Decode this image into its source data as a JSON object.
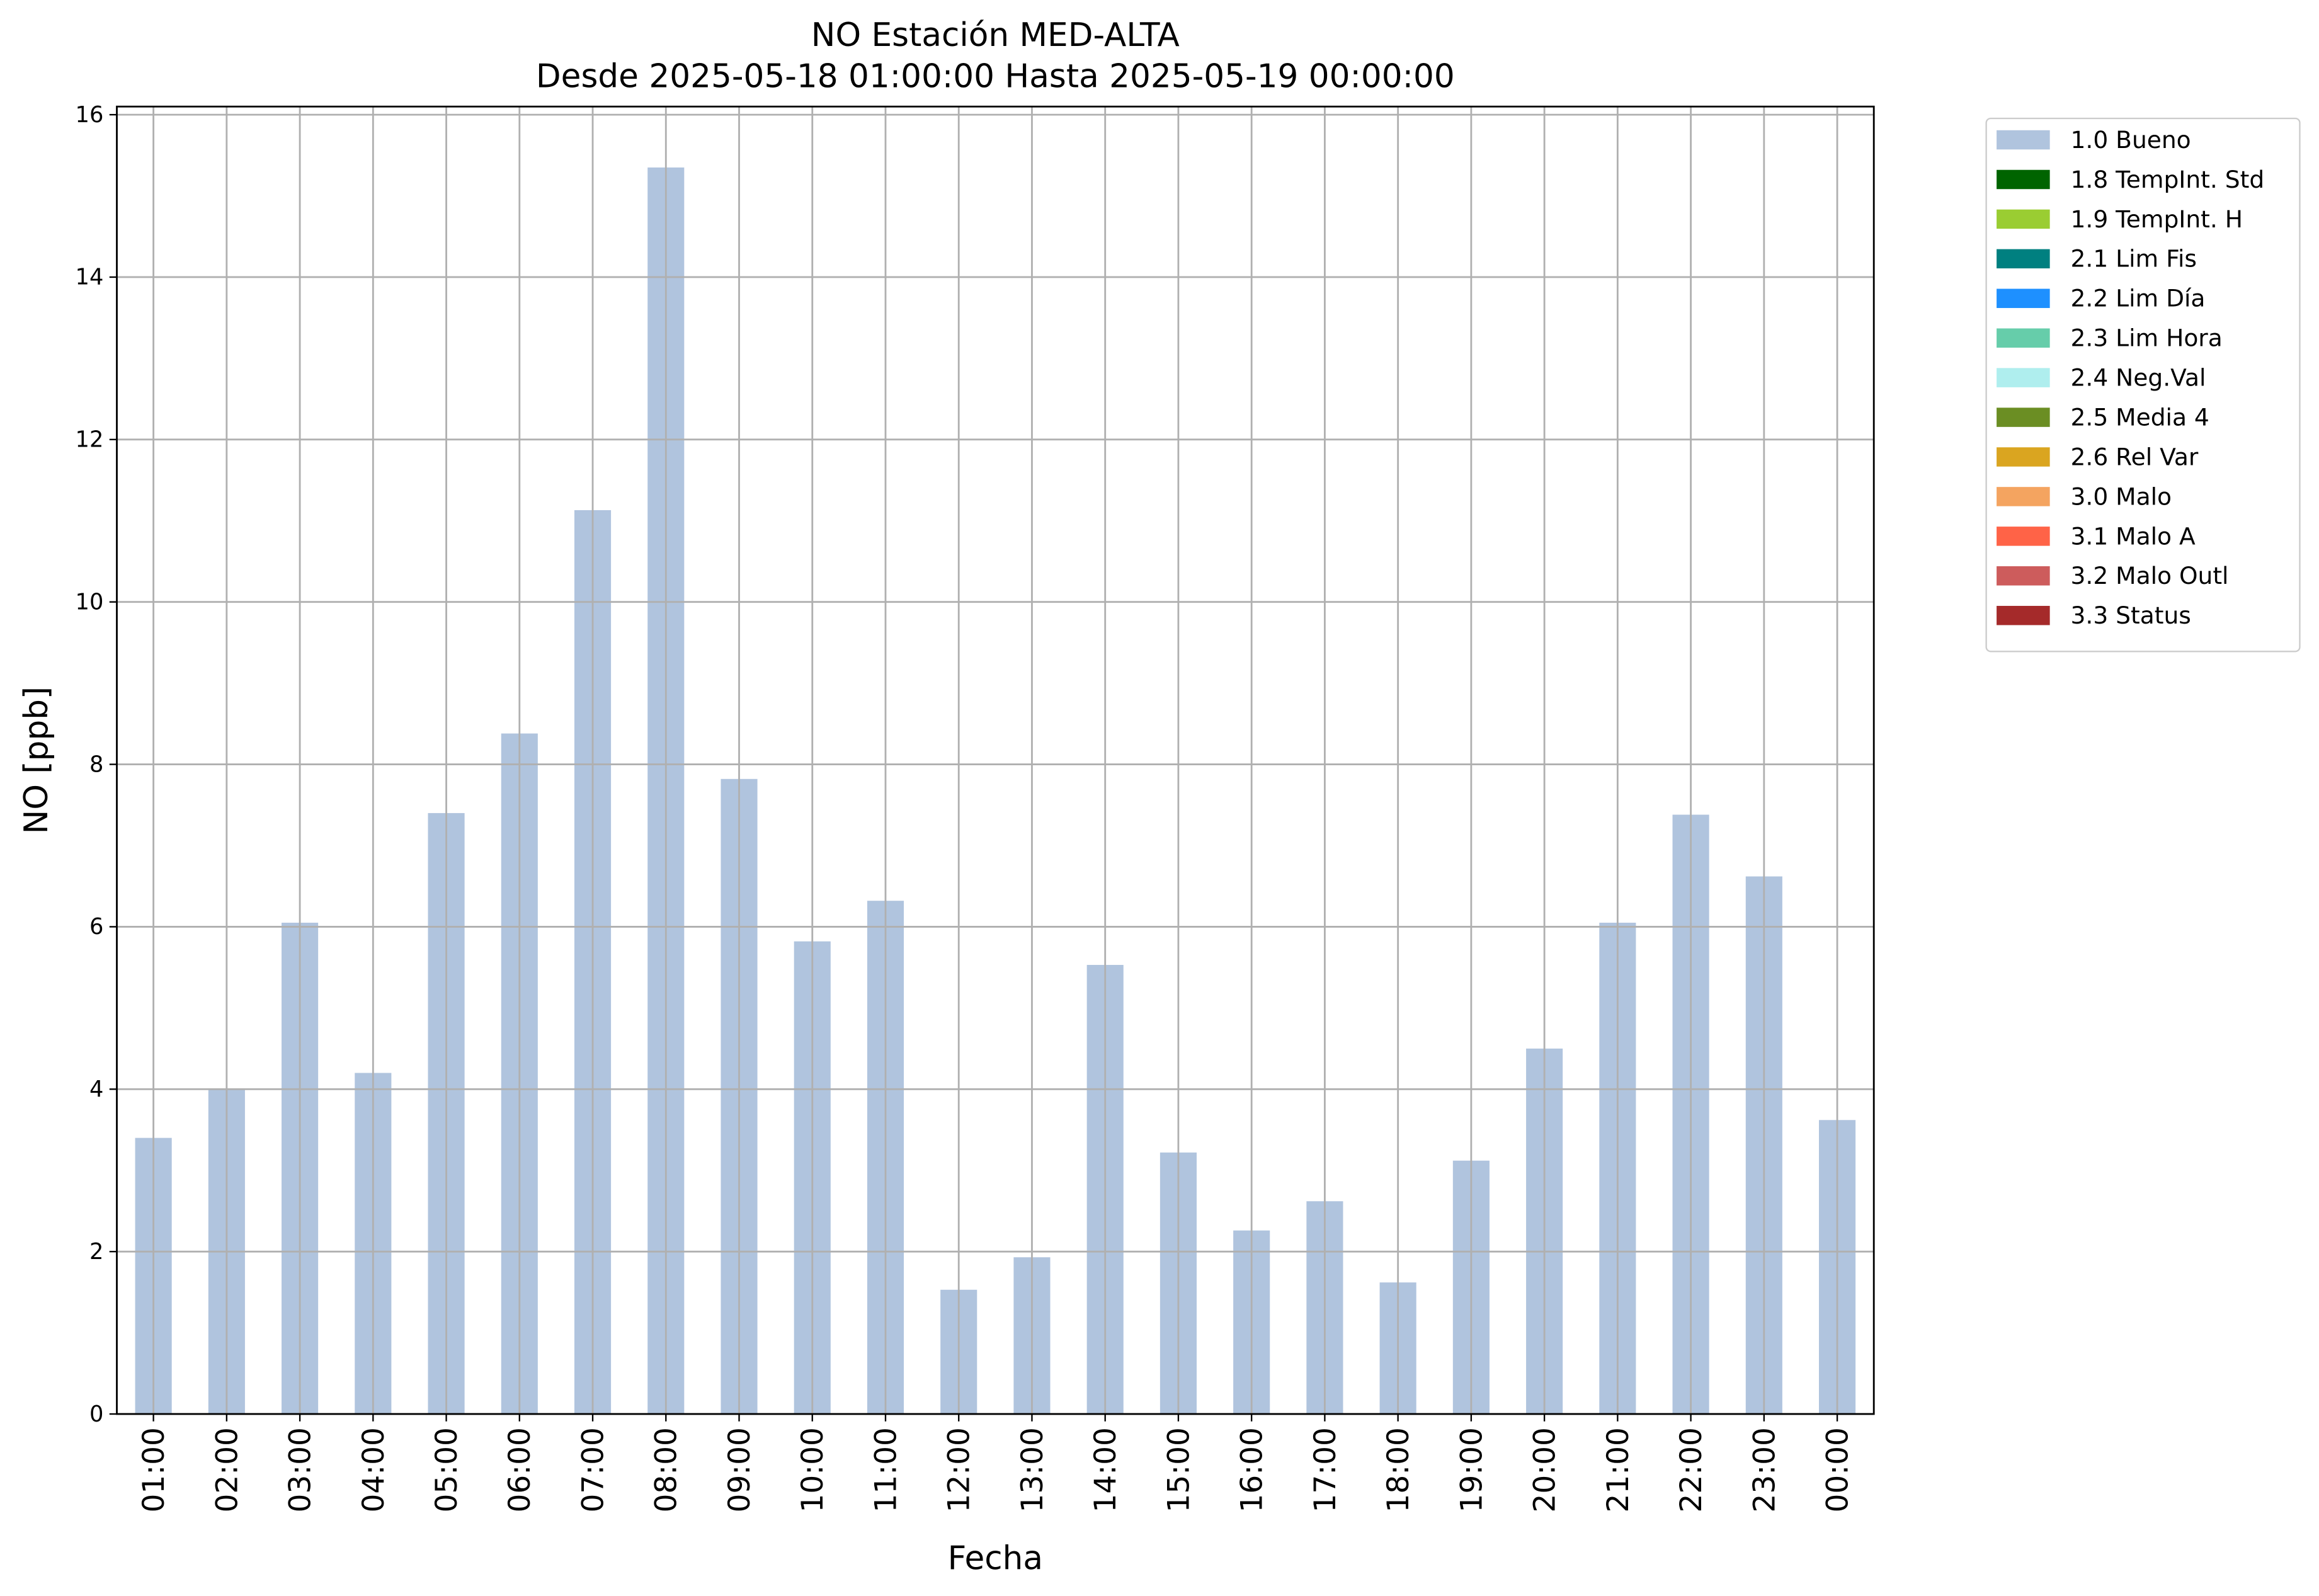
{
  "chart_data": {
    "type": "bar",
    "title": "NO Estación MED-ALTA",
    "subtitle": "Desde 2025-05-18 01:00:00 Hasta 2025-05-19 00:00:00",
    "x_label": "Fecha",
    "y_label": "NO [ppb]",
    "categories": [
      "01:00",
      "02:00",
      "03:00",
      "04:00",
      "05:00",
      "06:00",
      "07:00",
      "08:00",
      "09:00",
      "10:00",
      "11:00",
      "12:00",
      "13:00",
      "14:00",
      "15:00",
      "16:00",
      "17:00",
      "18:00",
      "19:00",
      "20:00",
      "21:00",
      "22:00",
      "23:00",
      "00:00"
    ],
    "series": [
      {
        "name": "1.0 Bueno",
        "color": "#b0c4de",
        "values": [
          3.4,
          4.0,
          6.05,
          4.2,
          7.4,
          8.38,
          11.13,
          15.35,
          7.82,
          5.82,
          6.32,
          1.53,
          1.93,
          5.53,
          3.22,
          2.26,
          2.62,
          1.62,
          3.12,
          4.5,
          6.05,
          7.38,
          6.62,
          3.62
        ]
      },
      {
        "name": "1.8 TempInt. Std",
        "color": "#006400"
      },
      {
        "name": "1.9 TempInt. H",
        "color": "#9acd32"
      },
      {
        "name": "2.1 Lim Fis",
        "color": "#008080"
      },
      {
        "name": "2.2 Lim Día",
        "color": "#1e90ff"
      },
      {
        "name": "2.3 Lim Hora",
        "color": "#66cdaa"
      },
      {
        "name": "2.4 Neg.Val",
        "color": "#afeeee"
      },
      {
        "name": "2.5 Media 4",
        "color": "#6b8e23"
      },
      {
        "name": "2.6 Rel Var",
        "color": "#daa520"
      },
      {
        "name": "3.0 Malo",
        "color": "#f4a460"
      },
      {
        "name": "3.1 Malo A",
        "color": "#ff6347"
      },
      {
        "name": "3.2 Malo Outl",
        "color": "#cd5c5c"
      },
      {
        "name": "3.3 Status",
        "color": "#a52a2a"
      }
    ],
    "ylim": [
      0,
      16.1
    ],
    "yticks": [
      0,
      2,
      4,
      6,
      8,
      10,
      12,
      14,
      16
    ],
    "grid": true,
    "legend": "outside upper right"
  }
}
